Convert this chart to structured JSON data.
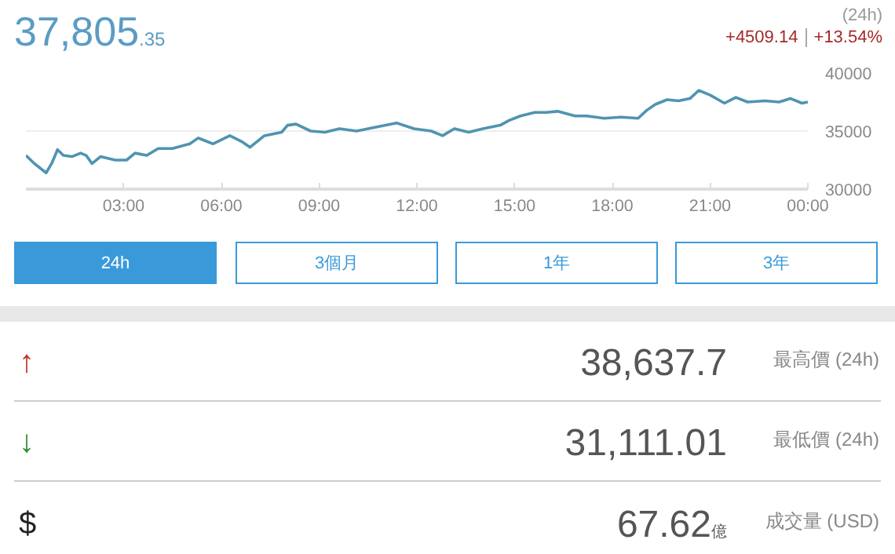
{
  "chart_data": {
    "type": "line",
    "title": "37,805.35",
    "annotations": [
      "(24h)",
      "+4509.14",
      "+13.54%",
      "24h",
      "3個月",
      "1年",
      "3年",
      "↑",
      "38,637.7",
      "最高價 (24h)",
      "↓",
      "31,111.01",
      "最低價 (24h)",
      "$",
      "67.62",
      "億",
      "成交量 (USD)"
    ],
    "x": [
      0,
      0.26,
      0.62,
      0.79,
      0.97,
      1.15,
      1.41,
      1.68,
      1.85,
      2.03,
      2.29,
      2.74,
      3.09,
      3.35,
      3.71,
      4.06,
      4.5,
      5.03,
      5.29,
      5.74,
      6.26,
      6.62,
      6.88,
      7.32,
      7.85,
      8.03,
      8.29,
      8.74,
      9.18,
      9.62,
      10.15,
      10.68,
      11.38,
      11.91,
      12.44,
      12.79,
      13.15,
      13.59,
      14.03,
      14.56,
      14.82,
      15.18,
      15.62,
      15.97,
      16.32,
      16.85,
      17.21,
      17.74,
      18.26,
      18.79,
      19.06,
      19.32,
      19.68,
      20.03,
      20.38,
      20.65,
      21.0,
      21.44,
      21.79,
      22.15,
      22.68,
      23.12,
      23.47,
      23.82,
      24
    ],
    "series": [
      {
        "color": "#4f94b0",
        "values": [
          32900,
          32200,
          31400,
          32200,
          33400,
          32900,
          32800,
          33100,
          32900,
          32200,
          32800,
          32500,
          32500,
          33100,
          32900,
          33500,
          33500,
          33900,
          34400,
          33900,
          34600,
          34100,
          33600,
          34600,
          34900,
          35500,
          35600,
          35000,
          34900,
          35200,
          35000,
          35300,
          35700,
          35200,
          35000,
          34600,
          35200,
          34900,
          35200,
          35500,
          35900,
          36300,
          36600,
          36600,
          36700,
          36300,
          36300,
          36100,
          36200,
          36100,
          36800,
          37300,
          37700,
          37600,
          37800,
          38500,
          38100,
          37400,
          37900,
          37500,
          37600,
          37500,
          37800,
          37400,
          37500
        ]
      }
    ],
    "xlim": [
      0,
      24
    ],
    "ylim": [
      30000,
      40000
    ],
    "xticks": [
      {
        "value": 3,
        "label": "03:00"
      },
      {
        "value": 6,
        "label": "06:00"
      },
      {
        "value": 9,
        "label": "09:00"
      },
      {
        "value": 12,
        "label": "12:00"
      },
      {
        "value": 15,
        "label": "15:00"
      },
      {
        "value": 18,
        "label": "18:00"
      },
      {
        "value": 21,
        "label": "21:00"
      },
      {
        "value": 24,
        "label": "00:00"
      }
    ],
    "yticks": [
      30000,
      35000,
      40000
    ],
    "grid": "y",
    "marker": "none",
    "line_style": "solid"
  }
}
